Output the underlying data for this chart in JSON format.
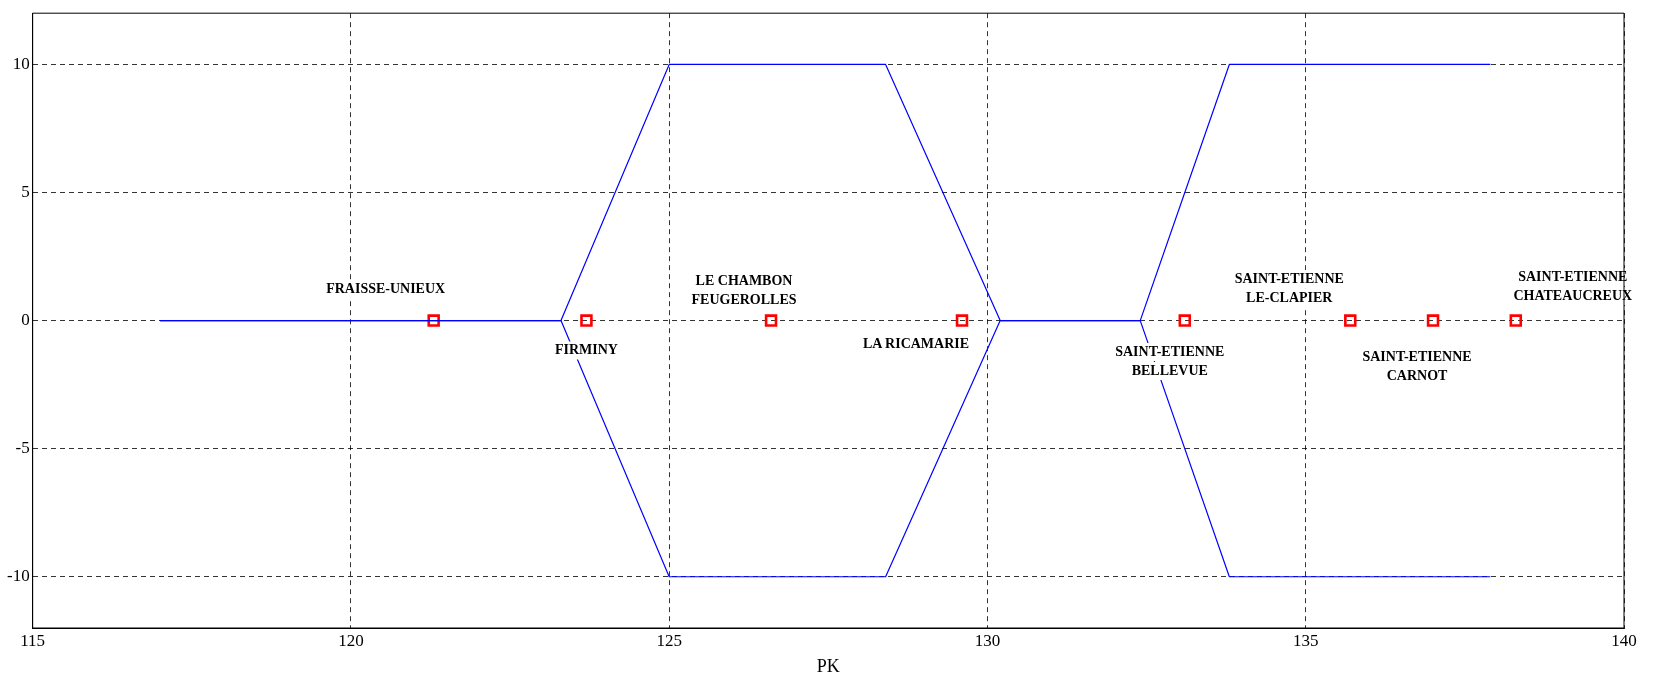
{
  "chart_data": {
    "type": "line",
    "xlabel": "PK",
    "xlim": [
      115,
      140
    ],
    "xticks": [
      115,
      120,
      125,
      130,
      135,
      140
    ],
    "ylim": [
      -12,
      12
    ],
    "yticks": [
      -10,
      -5,
      0,
      5,
      10
    ],
    "grid": true,
    "legend": false,
    "line_style": "solid",
    "series": [
      {
        "color": "#0000ff",
        "marker": "none",
        "x": [
          117,
          123.3,
          125,
          128.4,
          130.2,
          132.4,
          133.8,
          137.9
        ],
        "values": [
          0,
          0,
          10,
          10,
          0,
          0,
          10,
          10
        ]
      },
      {
        "color": "#0000ff",
        "marker": "none",
        "x": [
          117,
          123.3,
          125,
          128.4,
          130.2,
          132.4,
          133.8,
          137.9
        ],
        "values": [
          0,
          0,
          -10,
          -10,
          0,
          0,
          -10,
          -10
        ]
      },
      {
        "type": "scatter",
        "color": "#ff0000",
        "marker": "square",
        "x": [
          121.3,
          123.7,
          126.6,
          129.6,
          133.1,
          135.7,
          137,
          138.3
        ],
        "values": [
          0,
          0,
          0,
          0,
          0,
          0,
          0,
          0
        ]
      }
    ],
    "annotations": [
      {
        "text": "FRAISSE-UNIEUX",
        "x": 121.3,
        "y": 0
      },
      {
        "text": "FIRMINY",
        "x": 123.7,
        "y": 0
      },
      {
        "text": "LE CHAMBON\nFEUGEROLLES",
        "x": 126.6,
        "y": 0
      },
      {
        "text": "LA RICAMARIE",
        "x": 129.6,
        "y": 0
      },
      {
        "text": "SAINT-ETIENNE\nBELLEVUE",
        "x": 133.1,
        "y": 0
      },
      {
        "text": "SAINT-ETIENNE\nLE-CLAPIER",
        "x": 135.7,
        "y": 0
      },
      {
        "text": "SAINT-ETIENNE\nCARNOT",
        "x": 137,
        "y": 0
      },
      {
        "text": "SAINT-ETIENNE\nCHATEAUCREUX",
        "x": 138.3,
        "y": 0
      }
    ]
  }
}
